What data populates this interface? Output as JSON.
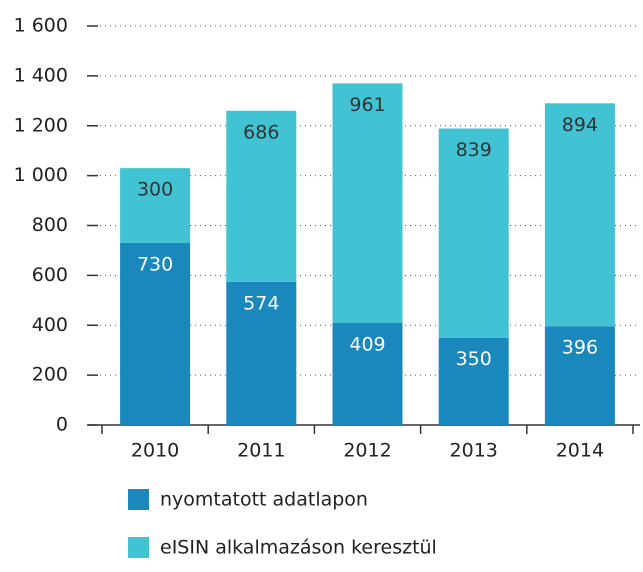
{
  "chart_data": {
    "type": "stacked_bar",
    "categories": [
      "2010",
      "2011",
      "2012",
      "2013",
      "2014"
    ],
    "series": [
      {
        "name": "nyomtatott adatlapon",
        "color": "#1a87bd",
        "values": [
          730,
          574,
          409,
          350,
          396
        ]
      },
      {
        "name": "eISIN alkalmazáson keresztül",
        "color": "#41c3d3",
        "values": [
          300,
          686,
          961,
          839,
          894
        ]
      }
    ],
    "ylim": [
      0,
      1600
    ],
    "yticks": [
      0,
      200,
      400,
      600,
      800,
      {
        "value": 1000,
        "label": "1 000"
      },
      {
        "value": 1200,
        "label": "1 200"
      },
      {
        "value": 1400,
        "label": "1 400"
      },
      {
        "value": 1600,
        "label": "1 600"
      }
    ],
    "grid": true
  }
}
